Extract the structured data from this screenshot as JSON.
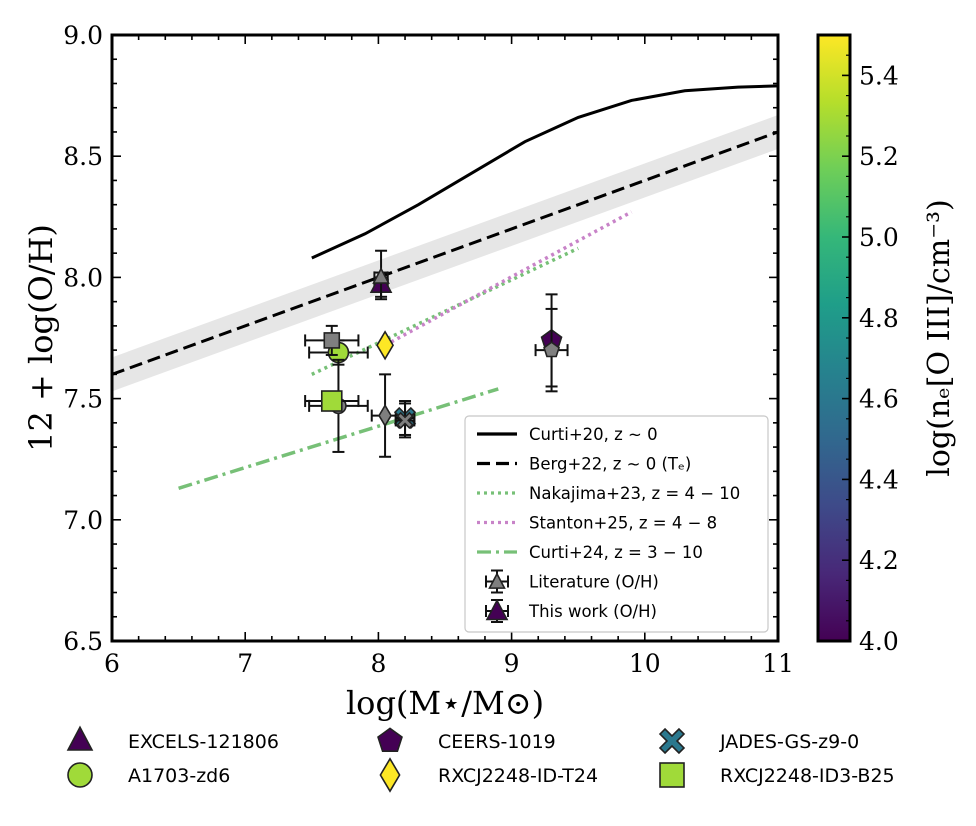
{
  "chart_data": {
    "type": "scatter",
    "xlabel": "log(M⋆/M⊙)",
    "ylabel": "12 + log(O/H)",
    "xlim": [
      6,
      11
    ],
    "ylim": [
      6.5,
      9.0
    ],
    "xticks": [
      "6",
      "7",
      "8",
      "9",
      "10",
      "11"
    ],
    "yticks": [
      "6.5",
      "7.0",
      "7.5",
      "8.0",
      "8.5",
      "9.0"
    ],
    "colorbar": {
      "label": "log(nₑ[O III]/cm⁻³)",
      "range": [
        4.0,
        5.5
      ],
      "ticks": [
        "4.0",
        "4.2",
        "4.4",
        "4.6",
        "4.8",
        "5.0",
        "5.2",
        "5.4"
      ],
      "colormap": [
        "#440154",
        "#482878",
        "#3e4a89",
        "#31688e",
        "#26828e",
        "#1f9e89",
        "#35b779",
        "#6ece58",
        "#b5de2b",
        "#fde725"
      ]
    },
    "relations": [
      {
        "name": "Curti+20, z ∼ 0",
        "style": "solid",
        "color": "#000000",
        "x": [
          7.5,
          7.9,
          8.3,
          8.7,
          9.1,
          9.5,
          9.9,
          10.3,
          10.7,
          11.0
        ],
        "y": [
          8.08,
          8.18,
          8.3,
          8.43,
          8.56,
          8.66,
          8.73,
          8.77,
          8.785,
          8.79
        ]
      },
      {
        "name": "Berg+22, z ∼ 0 (Tₑ)",
        "style": "dashed",
        "color": "#000000",
        "x": [
          6.0,
          11.0
        ],
        "y": [
          7.6,
          8.6
        ],
        "band": 0.07
      },
      {
        "name": "Nakajima+23, z = 4 − 10",
        "style": "dotted",
        "color": "#77c077",
        "x": [
          7.5,
          9.5
        ],
        "y": [
          7.6,
          8.12
        ]
      },
      {
        "name": "Stanton+25, z = 4 − 8",
        "style": "dotted",
        "color": "#c883c8",
        "x": [
          8.05,
          9.9
        ],
        "y": [
          7.72,
          8.27
        ]
      },
      {
        "name": "Curti+24, z = 3 − 10",
        "style": "dashdot",
        "color": "#77c077",
        "x": [
          6.5,
          8.9
        ],
        "y": [
          7.13,
          7.54
        ]
      }
    ],
    "objects": [
      {
        "name": "EXCELS-121806",
        "marker": "triangle",
        "logne": 4.0,
        "fill": "#440154",
        "literature": {
          "x": 8.02,
          "y": 8.0,
          "xerr": 0.05,
          "yerr": [
            0.09,
            0.11
          ]
        },
        "this_work": {
          "x": 8.02,
          "y": 7.97,
          "xerr": 0.05,
          "yerr": [
            0.05,
            0.05
          ]
        }
      },
      {
        "name": "RXCJ2248-ID-T24",
        "marker": "diamond",
        "logne": 5.48,
        "fill": "#fde725",
        "literature": {
          "x": 8.05,
          "y": 7.43,
          "xerr": 0.1,
          "yerr": [
            0.17,
            0.17
          ]
        },
        "this_work": {
          "x": 8.05,
          "y": 7.72,
          "xerr": 0.0,
          "yerr": [
            0.0,
            0.0
          ]
        }
      },
      {
        "name": "A1703-zd6",
        "marker": "circle",
        "logne": 5.25,
        "fill": "#a0da39",
        "literature": {
          "x": 7.7,
          "y": 7.47,
          "xerr": 0.22,
          "yerr": [
            0.19,
            0.19
          ]
        },
        "this_work": {
          "x": 7.7,
          "y": 7.69,
          "xerr": 0.22,
          "yerr": [
            0.05,
            0.05
          ]
        }
      },
      {
        "name": "JADES-GS-z9-0",
        "marker": "cross",
        "logne": 4.75,
        "fill": "#2a788e",
        "literature": {
          "x": 8.2,
          "y": 7.41,
          "xerr": 0.07,
          "yerr": [
            0.07,
            0.07
          ]
        },
        "this_work": {
          "x": 8.2,
          "y": 7.42,
          "xerr": 0.07,
          "yerr": [
            0.07,
            0.07
          ]
        }
      },
      {
        "name": "CEERS-1019",
        "marker": "pentagon",
        "logne": 4.05,
        "fill": "#440154",
        "literature": {
          "x": 9.3,
          "y": 7.7,
          "xerr": 0.12,
          "yerr": [
            0.17,
            0.17
          ]
        },
        "this_work": {
          "x": 9.3,
          "y": 7.74,
          "xerr": 0.0,
          "yerr": [
            0.19,
            0.19
          ]
        }
      },
      {
        "name": "RXCJ2248-ID3-B25",
        "marker": "square",
        "logne": 5.3,
        "fill": "#a0da39",
        "literature": {
          "x": 7.65,
          "y": 7.74,
          "xerr": 0.2,
          "yerr": [
            0.06,
            0.06
          ]
        },
        "this_work": {
          "x": 7.65,
          "y": 7.49,
          "xerr": 0.2,
          "yerr": [
            0.03,
            0.03
          ]
        }
      }
    ],
    "legend": {
      "placement": "lower-right",
      "entries": [
        "Curti+20, z ∼ 0",
        "Berg+22, z ∼ 0 (Tₑ)",
        "Nakajima+23, z = 4 − 10",
        "Stanton+25, z = 4 − 8",
        "Curti+24, z = 3 − 10",
        "Literature (O/H)",
        "This work (O/H)"
      ]
    },
    "bottom_legend": [
      "EXCELS-121806",
      "A1703-zd6",
      "CEERS-1019",
      "RXCJ2248-ID-T24",
      "JADES-GS-z9-0",
      "RXCJ2248-ID3-B25"
    ]
  }
}
